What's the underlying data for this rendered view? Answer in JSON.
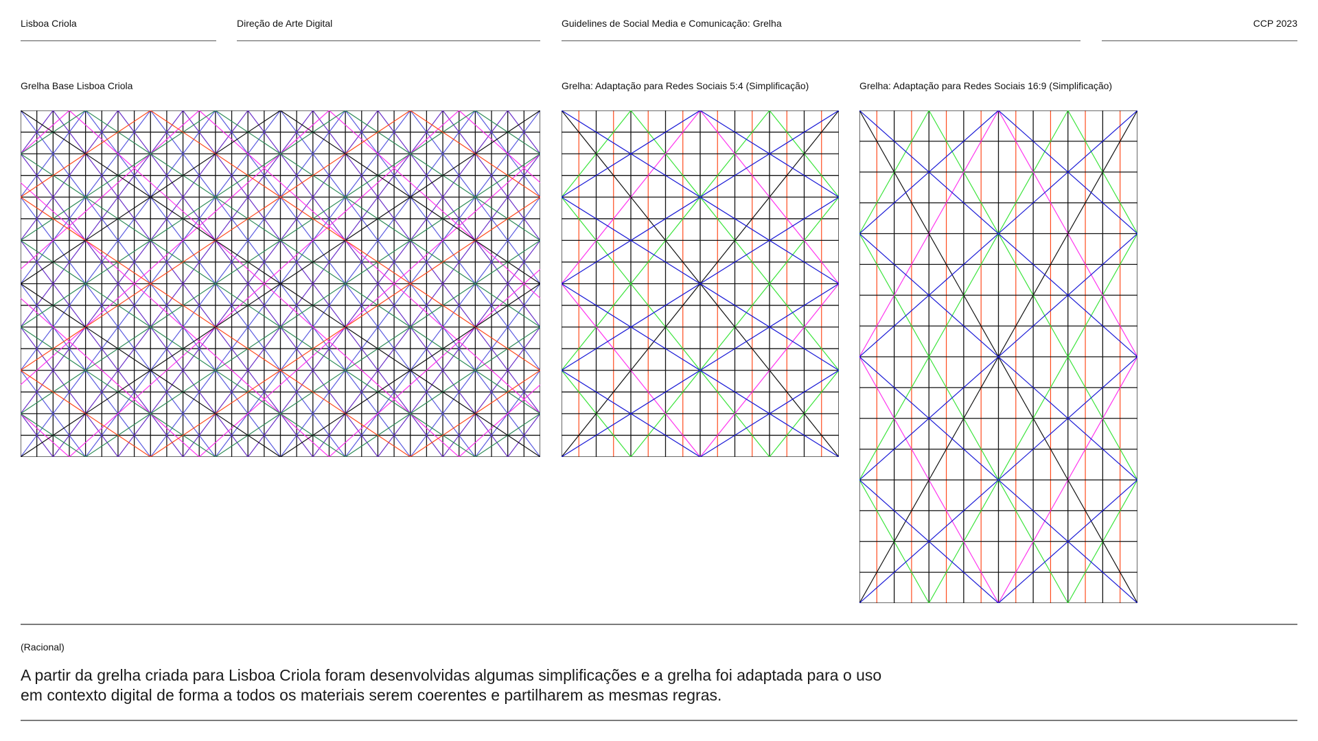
{
  "header": {
    "brand": "Lisboa Criola",
    "section": "Direção de Arte Digital",
    "document": "Guidelines de Social Media e Comunicação: Grelha",
    "edition": "CCP 2023"
  },
  "grids": [
    {
      "title": "Grelha Base Lisboa Criola"
    },
    {
      "title": "Grelha: Adaptação para Redes Sociais 5:4 (Simplificação)"
    },
    {
      "title": "Grelha: Adaptação para Redes Sociais 16:9 (Simplificação)"
    }
  ],
  "rationale": {
    "label": "(Racional)",
    "lines": [
      "A partir da grelha criada para Lisboa Criola foram desenvolvidas algumas simplificações e a grelha foi adaptada para o uso",
      "em contexto digital de forma a todos os materiais serem coerentes e partilharem as mesmas regras."
    ]
  },
  "colors": {
    "grid": "#111111",
    "orange": "#ff4a1c",
    "blue": "#1a1ad6",
    "green": "#3be43b",
    "pink": "#ff33ee",
    "purple": "#6a2fc8",
    "teal_green": "#2e8b57",
    "light_blue": "#5a5ae0",
    "rule": "#7a7a7a"
  }
}
